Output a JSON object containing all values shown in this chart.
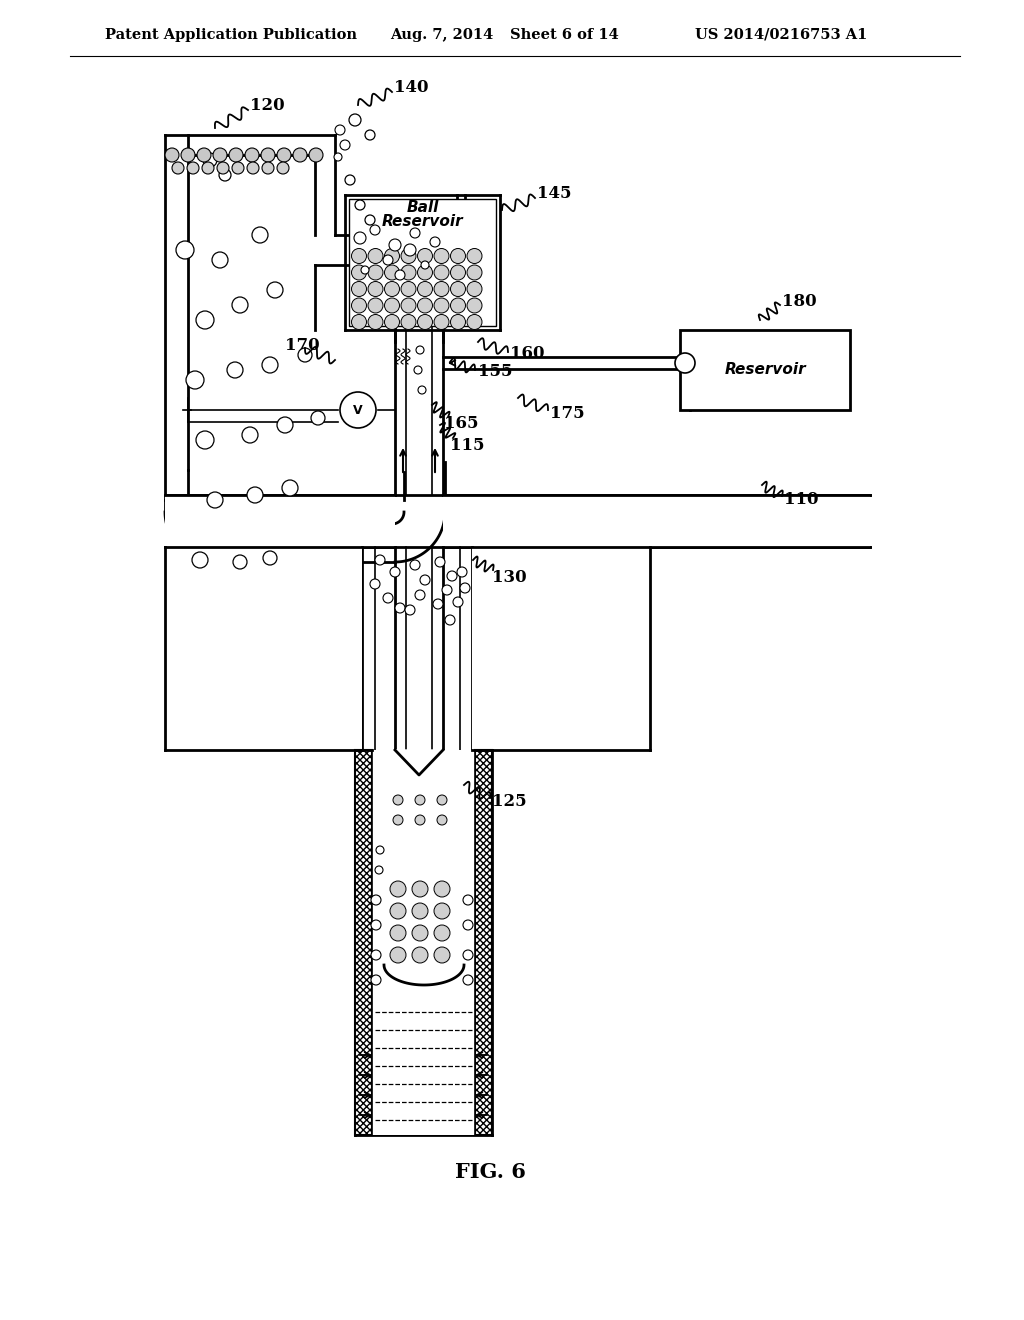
{
  "bg_color": "#ffffff",
  "header_left": "Patent Application Publication",
  "header_mid": "Aug. 7, 2014   Sheet 6 of 14",
  "header_right": "US 2014/0216753 A1",
  "fig_label": "FIG. 6",
  "lw": 2.0,
  "lw_thin": 1.2
}
